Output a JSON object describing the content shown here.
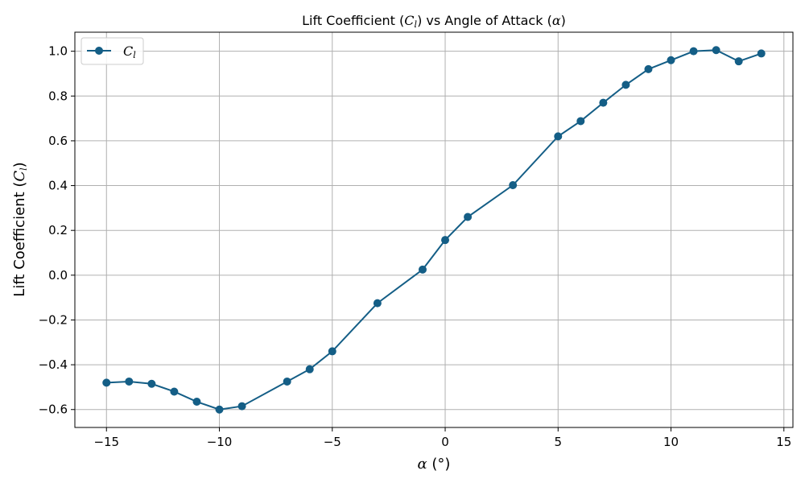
{
  "chart_data": {
    "type": "line",
    "title": "Lift Coefficient (C_l) vs Angle of Attack (α)",
    "title_parts": {
      "prefix": "Lift Coefficient (",
      "symbol": "C",
      "subscript": "l",
      "middle": ") vs Angle of Attack (",
      "alpha": "α",
      "suffix": ")"
    },
    "xlabel": "α (°)",
    "ylabel": "Lift Coefficient (C_l)",
    "ylabel_parts": {
      "prefix": "Lift Coefficient (",
      "symbol": "C",
      "subscript": "l",
      "suffix": ")"
    },
    "xlim": [
      -16.4,
      15.4
    ],
    "ylim": [
      -0.68,
      1.085
    ],
    "x_ticks": [
      -15,
      -10,
      -5,
      0,
      5,
      10,
      15
    ],
    "x_tick_labels": [
      "−15",
      "−10",
      "−5",
      "0",
      "5",
      "10",
      "15"
    ],
    "y_ticks": [
      -0.6,
      -0.4,
      -0.2,
      0.0,
      0.2,
      0.4,
      0.6,
      0.8,
      1.0
    ],
    "y_tick_labels": [
      "−0.6",
      "−0.4",
      "−0.2",
      "0.0",
      "0.2",
      "0.4",
      "0.6",
      "0.8",
      "1.0"
    ],
    "grid": true,
    "legend_position": "top-left",
    "series": [
      {
        "name": "C_l",
        "legend_symbol": "C",
        "legend_subscript": "l",
        "color": "#145e86",
        "marker": "circle",
        "x": [
          -15,
          -14,
          -13,
          -12,
          -11,
          -10,
          -9,
          -7,
          -6,
          -5,
          -3,
          -1,
          0,
          1,
          3,
          5,
          6,
          7,
          8,
          9,
          10,
          11,
          12,
          13,
          14
        ],
        "y": [
          -0.48,
          -0.475,
          -0.485,
          -0.52,
          -0.565,
          -0.6,
          -0.585,
          -0.475,
          -0.42,
          -0.34,
          -0.125,
          0.025,
          0.157,
          0.26,
          0.402,
          0.62,
          0.688,
          0.77,
          0.85,
          0.92,
          0.96,
          1.0,
          1.005,
          0.955,
          0.99
        ]
      }
    ]
  }
}
